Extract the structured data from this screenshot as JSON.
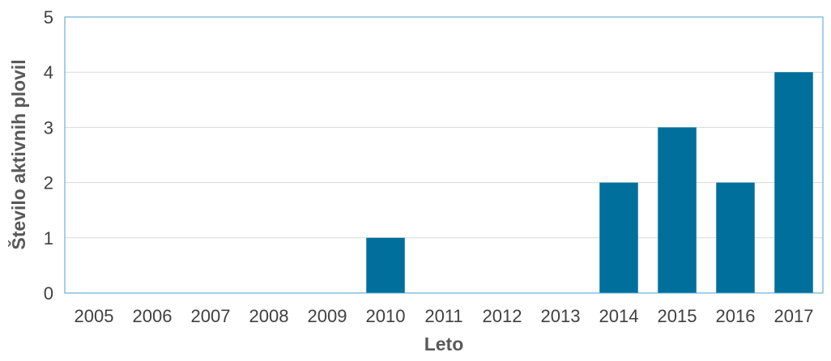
{
  "chart_data": {
    "type": "bar",
    "categories": [
      "2005",
      "2006",
      "2007",
      "2008",
      "2009",
      "2010",
      "2011",
      "2012",
      "2013",
      "2014",
      "2015",
      "2016",
      "2017"
    ],
    "values": [
      0,
      0,
      0,
      0,
      0,
      1,
      0,
      0,
      0,
      2,
      3,
      2,
      4
    ],
    "title": "",
    "xlabel": "Leto",
    "ylabel": "Število aktivnih plovil",
    "ylim": [
      0,
      5
    ],
    "yticks": [
      0,
      1,
      2,
      3,
      4,
      5
    ],
    "grid": true,
    "legend": "none",
    "colors": {
      "bar": "#006f9c",
      "frame": "#4aa3c8",
      "grid": "#d9d9d9"
    }
  }
}
